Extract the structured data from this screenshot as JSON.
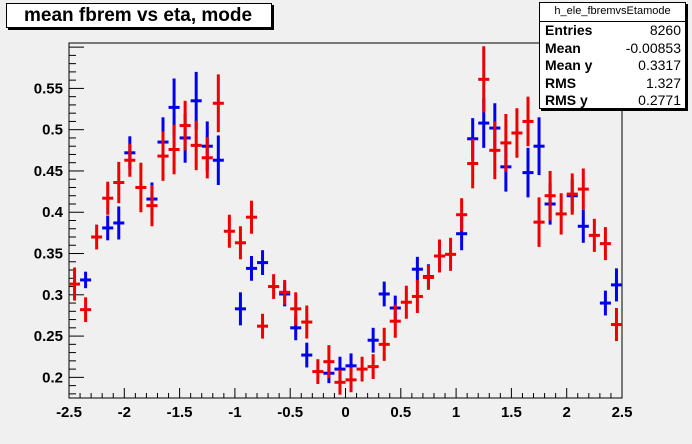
{
  "title": "mean fbrem vs eta, mode",
  "stats": {
    "name": "h_ele_fbremvsEtamode",
    "rows": [
      {
        "label": "Entries",
        "value": "8260"
      },
      {
        "label": "Mean",
        "value": "-0.00853"
      },
      {
        "label": "Mean y",
        "value": "0.3317"
      },
      {
        "label": "RMS",
        "value": "1.327"
      },
      {
        "label": "RMS y",
        "value": "0.2771"
      }
    ]
  },
  "chart_data": {
    "type": "scatter",
    "title": "mean fbrem vs eta, mode",
    "xlim": [
      -2.5,
      2.5
    ],
    "ylim": [
      0.175,
      0.605
    ],
    "x_ticks": [
      "-2.5",
      "-2",
      "-1.5",
      "-1",
      "-0.5",
      "0",
      "0.5",
      "1",
      "1.5",
      "2",
      "2.5"
    ],
    "y_ticks": [
      "0.2",
      "0.25",
      "0.3",
      "0.35",
      "0.4",
      "0.45",
      "0.5",
      "0.55"
    ],
    "grid": false,
    "series": [
      {
        "color": "#0000ee",
        "points": [
          [
            -2.35,
            0.318,
            0.01
          ],
          [
            -2.15,
            0.381,
            0.015
          ],
          [
            -2.05,
            0.387,
            0.02
          ],
          [
            -1.95,
            0.472,
            0.02
          ],
          [
            -1.75,
            0.416,
            0.02
          ],
          [
            -1.65,
            0.485,
            0.03
          ],
          [
            -1.55,
            0.527,
            0.035
          ],
          [
            -1.45,
            0.49,
            0.03
          ],
          [
            -1.35,
            0.535,
            0.035
          ],
          [
            -1.25,
            0.48,
            0.03
          ],
          [
            -1.15,
            0.463,
            0.03
          ],
          [
            -0.95,
            0.283,
            0.02
          ],
          [
            -0.85,
            0.332,
            0.015
          ],
          [
            -0.75,
            0.339,
            0.015
          ],
          [
            -0.55,
            0.301,
            0.015
          ],
          [
            -0.45,
            0.26,
            0.015
          ],
          [
            -0.35,
            0.227,
            0.015
          ],
          [
            -0.15,
            0.205,
            0.012
          ],
          [
            -0.05,
            0.21,
            0.015
          ],
          [
            0.05,
            0.214,
            0.015
          ],
          [
            0.25,
            0.245,
            0.015
          ],
          [
            0.35,
            0.301,
            0.015
          ],
          [
            0.45,
            0.284,
            0.015
          ],
          [
            0.65,
            0.331,
            0.015
          ],
          [
            0.75,
            0.322,
            0.015
          ],
          [
            0.85,
            0.347,
            0.015
          ],
          [
            1.05,
            0.374,
            0.02
          ],
          [
            1.15,
            0.489,
            0.025
          ],
          [
            1.25,
            0.508,
            0.03
          ],
          [
            1.35,
            0.502,
            0.03
          ],
          [
            1.45,
            0.455,
            0.03
          ],
          [
            1.65,
            0.448,
            0.03
          ],
          [
            1.75,
            0.48,
            0.035
          ],
          [
            1.85,
            0.41,
            0.025
          ],
          [
            2.05,
            0.42,
            0.02
          ],
          [
            2.15,
            0.383,
            0.02
          ],
          [
            2.35,
            0.29,
            0.015
          ],
          [
            2.45,
            0.312,
            0.02
          ]
        ]
      },
      {
        "color": "#ee0000",
        "points": [
          [
            -2.45,
            0.313,
            0.02
          ],
          [
            -2.35,
            0.282,
            0.015
          ],
          [
            -2.25,
            0.37,
            0.015
          ],
          [
            -2.15,
            0.417,
            0.02
          ],
          [
            -2.05,
            0.436,
            0.025
          ],
          [
            -1.95,
            0.463,
            0.02
          ],
          [
            -1.85,
            0.43,
            0.03
          ],
          [
            -1.75,
            0.408,
            0.025
          ],
          [
            -1.65,
            0.468,
            0.03
          ],
          [
            -1.55,
            0.476,
            0.03
          ],
          [
            -1.45,
            0.505,
            0.03
          ],
          [
            -1.35,
            0.481,
            0.03
          ],
          [
            -1.25,
            0.466,
            0.025
          ],
          [
            -1.15,
            0.532,
            0.035
          ],
          [
            -1.05,
            0.377,
            0.02
          ],
          [
            -0.95,
            0.363,
            0.02
          ],
          [
            -0.85,
            0.394,
            0.02
          ],
          [
            -0.75,
            0.262,
            0.015
          ],
          [
            -0.65,
            0.31,
            0.015
          ],
          [
            -0.55,
            0.303,
            0.015
          ],
          [
            -0.45,
            0.283,
            0.02
          ],
          [
            -0.35,
            0.267,
            0.02
          ],
          [
            -0.25,
            0.207,
            0.015
          ],
          [
            -0.15,
            0.219,
            0.02
          ],
          [
            -0.05,
            0.194,
            0.015
          ],
          [
            0.05,
            0.197,
            0.015
          ],
          [
            0.15,
            0.21,
            0.015
          ],
          [
            0.25,
            0.213,
            0.015
          ],
          [
            0.35,
            0.24,
            0.02
          ],
          [
            0.45,
            0.268,
            0.02
          ],
          [
            0.55,
            0.291,
            0.02
          ],
          [
            0.65,
            0.298,
            0.02
          ],
          [
            0.75,
            0.321,
            0.015
          ],
          [
            0.85,
            0.347,
            0.02
          ],
          [
            0.95,
            0.349,
            0.02
          ],
          [
            1.05,
            0.397,
            0.02
          ],
          [
            1.15,
            0.459,
            0.03
          ],
          [
            1.25,
            0.561,
            0.04
          ],
          [
            1.35,
            0.475,
            0.035
          ],
          [
            1.45,
            0.484,
            0.035
          ],
          [
            1.55,
            0.496,
            0.03
          ],
          [
            1.65,
            0.51,
            0.03
          ],
          [
            1.75,
            0.388,
            0.03
          ],
          [
            1.85,
            0.42,
            0.03
          ],
          [
            1.95,
            0.398,
            0.025
          ],
          [
            2.05,
            0.422,
            0.025
          ],
          [
            2.15,
            0.428,
            0.025
          ],
          [
            2.25,
            0.372,
            0.02
          ],
          [
            2.35,
            0.362,
            0.02
          ],
          [
            2.45,
            0.264,
            0.02
          ]
        ]
      }
    ]
  }
}
